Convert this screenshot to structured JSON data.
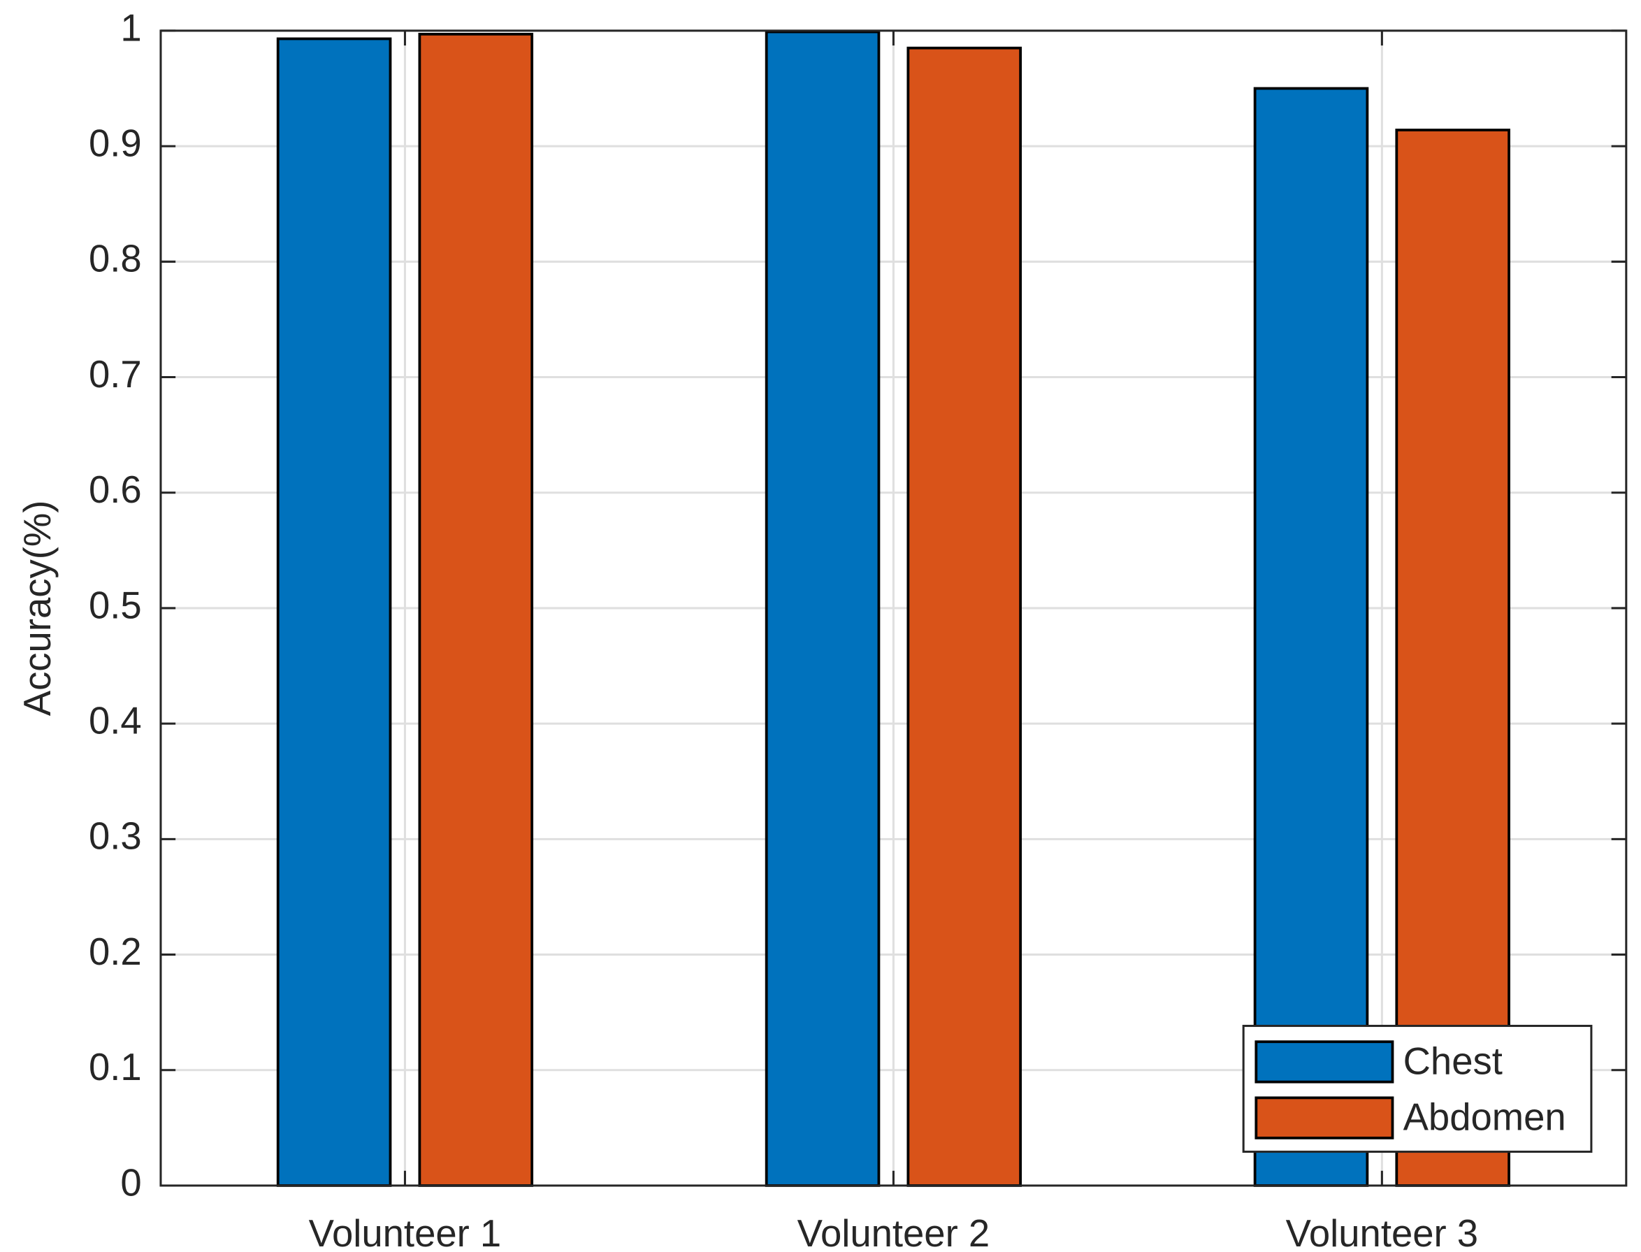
{
  "chart_data": {
    "type": "bar",
    "y_label": "Accuracy(%)",
    "categories": [
      "Volunteer 1",
      "Volunteer 2",
      "Volunteer 3"
    ],
    "series": [
      {
        "name": "Chest",
        "color": "#0072bd",
        "values": [
          0.993,
          0.999,
          0.95
        ]
      },
      {
        "name": "Abdomen",
        "color": "#d95319",
        "values": [
          0.997,
          0.985,
          0.914
        ]
      }
    ],
    "ylim": [
      0,
      1
    ],
    "yticks": [
      0,
      0.1,
      0.2,
      0.3,
      0.4,
      0.5,
      0.6,
      0.7,
      0.8,
      0.9,
      1
    ],
    "grid": true,
    "legend": "bottom-right"
  }
}
